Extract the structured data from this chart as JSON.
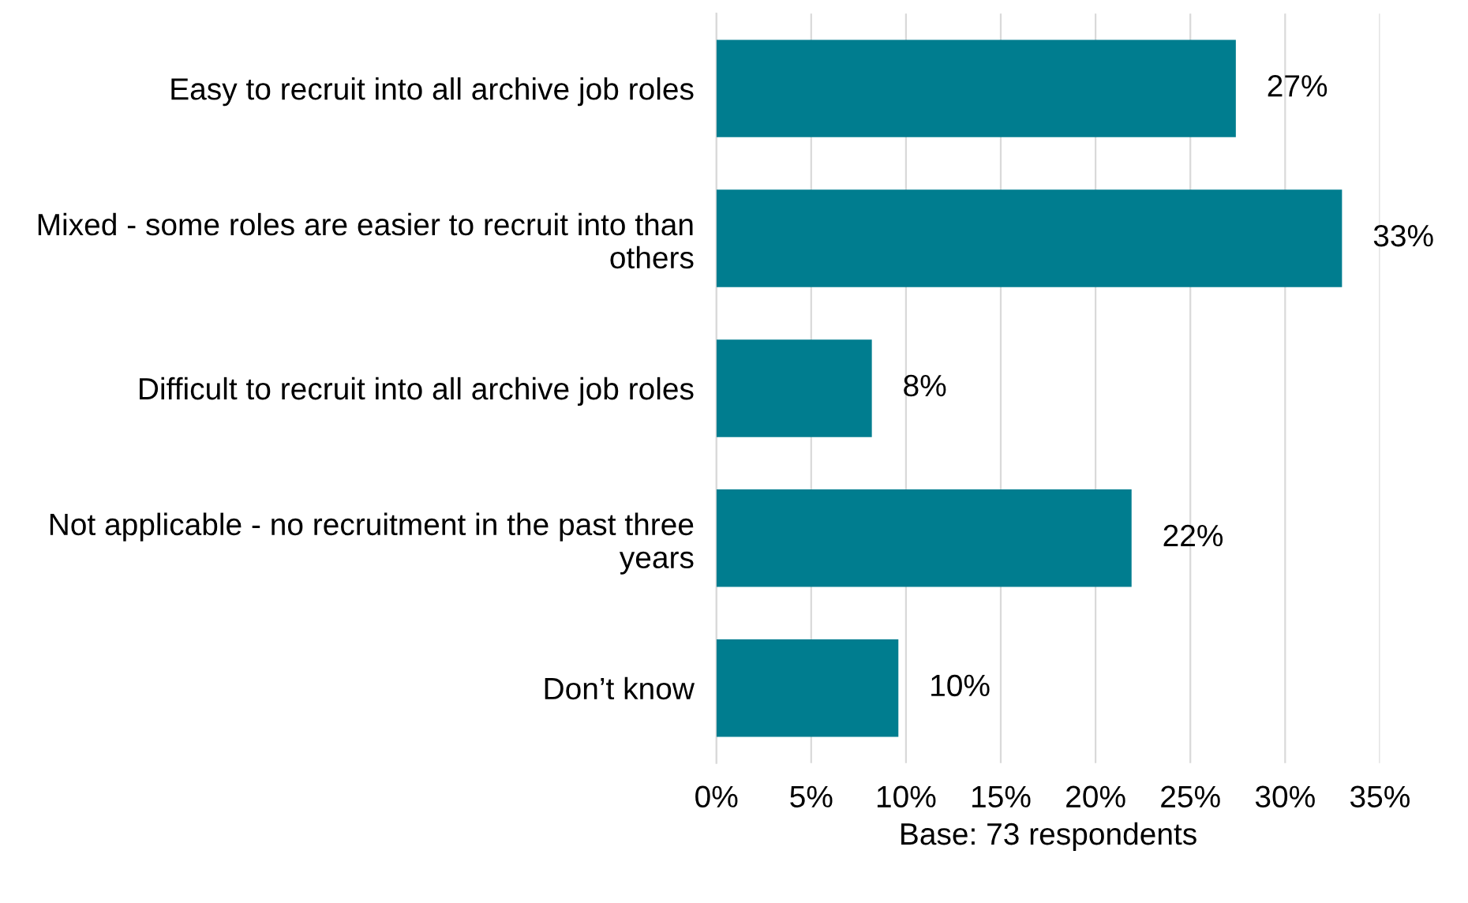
{
  "chart_data": {
    "type": "bar",
    "orientation": "horizontal",
    "categories": [
      "Easy to recruit into all archive job roles",
      "Mixed - some roles are easier to recruit into than others",
      "Difficult to recruit into all archive job roles",
      "Not applicable - no recruitment in the past three years",
      "Don’t know"
    ],
    "values": [
      27.4,
      33,
      8.2,
      21.9,
      9.6
    ],
    "value_labels": [
      "27%",
      "33%",
      "8%",
      "22%",
      "10%"
    ],
    "color": "#007d8f",
    "xlabel": "Base: 73 respondents",
    "xlim": [
      0,
      35
    ],
    "xticks": [
      {
        "value": 0,
        "label": "0%"
      },
      {
        "value": 5,
        "label": "5%"
      },
      {
        "value": 10,
        "label": "10%"
      },
      {
        "value": 15,
        "label": "15%"
      },
      {
        "value": 20,
        "label": "20%"
      },
      {
        "value": 25,
        "label": "25%"
      },
      {
        "value": 30,
        "label": "30%"
      },
      {
        "value": 35,
        "label": "35%"
      }
    ],
    "grid": "x"
  }
}
